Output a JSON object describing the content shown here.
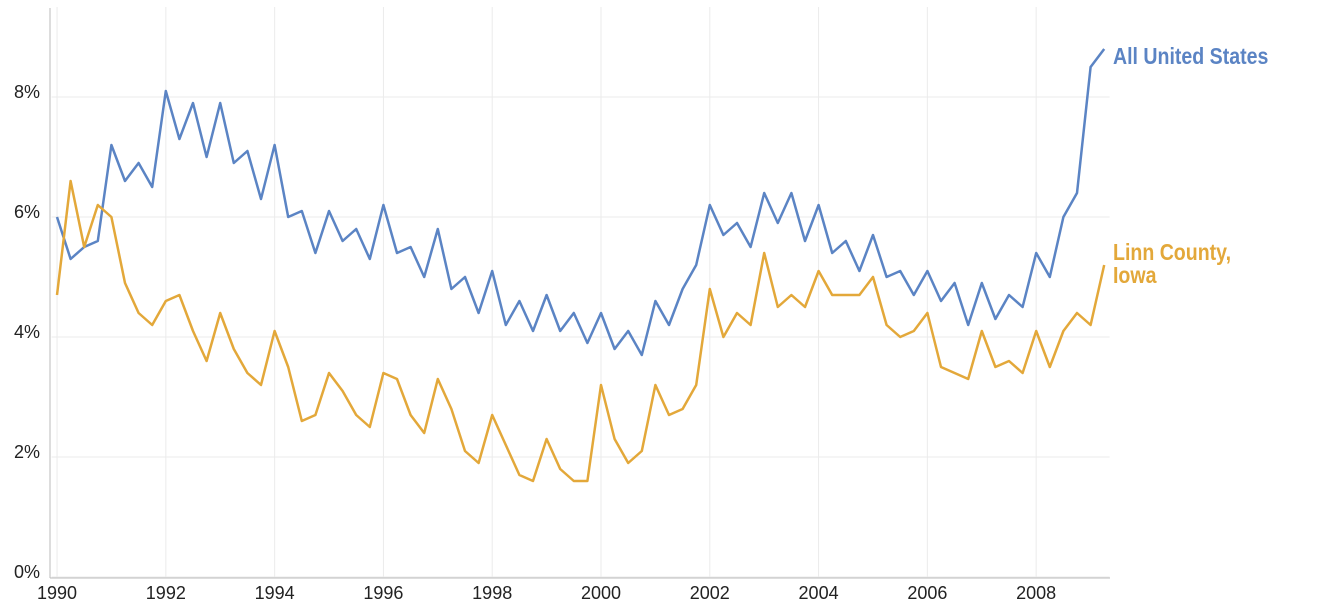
{
  "chart_data": {
    "type": "line",
    "x": [
      1990,
      1990.25,
      1990.5,
      1990.75,
      1991,
      1991.25,
      1991.5,
      1991.75,
      1992,
      1992.25,
      1992.5,
      1992.75,
      1993,
      1993.25,
      1993.5,
      1993.75,
      1994,
      1994.25,
      1994.5,
      1994.75,
      1995,
      1995.25,
      1995.5,
      1995.75,
      1996,
      1996.25,
      1996.5,
      1996.75,
      1997,
      1997.25,
      1997.5,
      1997.75,
      1998,
      1998.25,
      1998.5,
      1998.75,
      1999,
      1999.25,
      1999.5,
      1999.75,
      2000,
      2000.25,
      2000.5,
      2000.75,
      2001,
      2001.25,
      2001.5,
      2001.75,
      2002,
      2002.25,
      2002.5,
      2002.75,
      2003,
      2003.25,
      2003.5,
      2003.75,
      2004,
      2004.25,
      2004.5,
      2004.75,
      2005,
      2005.25,
      2005.5,
      2005.75,
      2006,
      2006.25,
      2006.5,
      2006.75,
      2007,
      2007.25,
      2007.5,
      2007.75,
      2008,
      2008.25,
      2008.5,
      2008.75,
      2009,
      2009.25
    ],
    "series": [
      {
        "name": "All United States",
        "color": "#5b84c4",
        "values": [
          6.0,
          5.3,
          5.5,
          5.6,
          7.2,
          6.6,
          6.9,
          6.5,
          8.1,
          7.3,
          7.9,
          7.0,
          7.9,
          6.9,
          7.1,
          6.3,
          7.2,
          6.0,
          6.1,
          5.4,
          6.1,
          5.6,
          5.8,
          5.3,
          6.2,
          5.4,
          5.5,
          5.0,
          5.8,
          4.8,
          5.0,
          4.4,
          5.1,
          4.2,
          4.6,
          4.1,
          4.7,
          4.1,
          4.4,
          3.9,
          4.4,
          3.8,
          4.1,
          3.7,
          4.6,
          4.2,
          4.8,
          5.2,
          6.2,
          5.7,
          5.9,
          5.5,
          6.4,
          5.9,
          6.4,
          5.6,
          6.2,
          5.4,
          5.6,
          5.1,
          5.7,
          5.0,
          5.1,
          4.7,
          5.1,
          4.6,
          4.9,
          4.2,
          4.9,
          4.3,
          4.7,
          4.5,
          5.4,
          5.0,
          6.0,
          6.4,
          8.5,
          8.8
        ]
      },
      {
        "name": "Linn County, Iowa",
        "color": "#e3a83a",
        "values": [
          4.7,
          6.6,
          5.5,
          6.2,
          6.0,
          4.9,
          4.4,
          4.2,
          4.6,
          4.7,
          4.1,
          3.6,
          4.4,
          3.8,
          3.4,
          3.2,
          4.1,
          3.5,
          2.6,
          2.7,
          3.4,
          3.1,
          2.7,
          2.5,
          3.4,
          3.3,
          2.7,
          2.4,
          3.3,
          2.8,
          2.1,
          1.9,
          2.7,
          2.2,
          1.7,
          1.6,
          2.3,
          1.8,
          1.6,
          1.6,
          3.2,
          2.3,
          1.9,
          2.1,
          3.2,
          2.7,
          2.8,
          3.2,
          4.8,
          4.0,
          4.4,
          4.2,
          5.4,
          4.5,
          4.7,
          4.5,
          5.1,
          4.7,
          4.7,
          4.7,
          5.0,
          4.2,
          4.0,
          4.1,
          4.4,
          3.5,
          3.4,
          3.3,
          4.1,
          3.5,
          3.6,
          3.4,
          4.1,
          3.5,
          4.1,
          4.4,
          4.2,
          5.2
        ]
      }
    ],
    "xlim": [
      1989.9,
      2009.35
    ],
    "xticks": [
      1990,
      1992,
      1994,
      1996,
      1998,
      2000,
      2002,
      2004,
      2006,
      2008
    ],
    "ylim": [
      0,
      9.5
    ],
    "yticks": [
      {
        "value": 0,
        "label": "0%"
      },
      {
        "value": 2,
        "label": "2%"
      },
      {
        "value": 4,
        "label": "4%"
      },
      {
        "value": 6,
        "label": "6%"
      },
      {
        "value": 8,
        "label": "8%"
      }
    ],
    "grid": true
  }
}
